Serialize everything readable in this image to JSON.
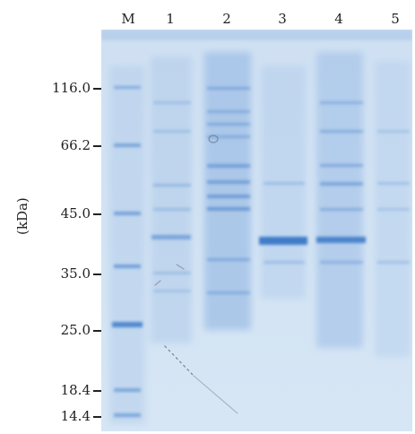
{
  "figure": {
    "marker_lane_label": "M",
    "unit_label": "(kDa)",
    "lane_labels": [
      "1",
      "2",
      "3",
      "4",
      "5"
    ],
    "molecular_weight_markers": [
      "116.0",
      "66.2",
      "45.0",
      "35.0",
      "25.0",
      "18.4",
      "14.4"
    ]
  },
  "colors": {
    "gel_background": "#c9dcf0",
    "stain": "#3f7bc8",
    "text": "#222222"
  }
}
